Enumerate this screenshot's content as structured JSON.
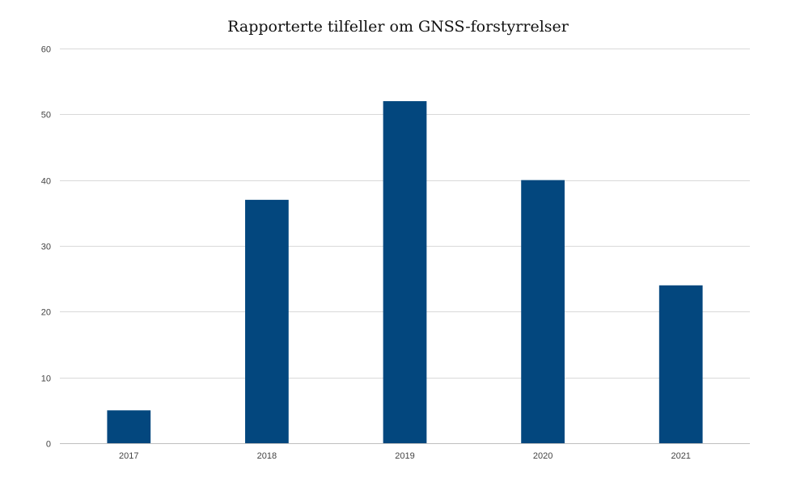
{
  "chart_data": {
    "type": "bar",
    "title": "Rapporterte tilfeller om GNSS-forstyrrelser",
    "xlabel": "",
    "ylabel": "",
    "categories": [
      "2017",
      "2018",
      "2019",
      "2020",
      "2021"
    ],
    "values": [
      5,
      37,
      52,
      40,
      24
    ],
    "ylim": [
      0,
      60
    ],
    "yticks": [
      0,
      10,
      20,
      30,
      40,
      50,
      60
    ],
    "grid": true,
    "legend": "none",
    "bar_color": "#03477e"
  }
}
